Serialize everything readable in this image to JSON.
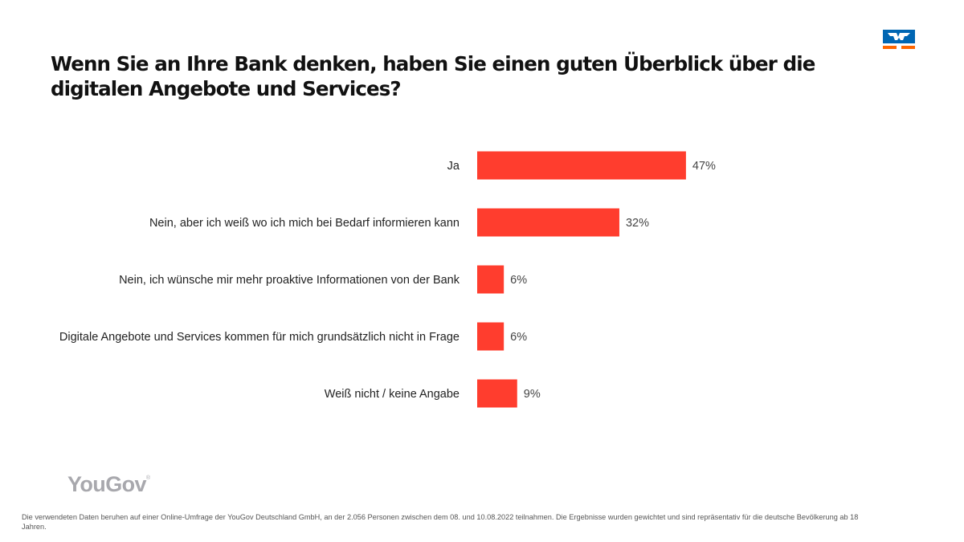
{
  "title": "Wenn Sie an Ihre Bank denken, haben Sie einen guten Überblick über die digitalen Angebote und Services?",
  "brand": {
    "logo_icon": "volksbank-raiffeisenbank-logo-icon",
    "logo_blue": "#0066b3",
    "logo_orange": "#ff6600",
    "source_logo_text": "YouGov",
    "source_logo_mark": "®"
  },
  "footnote": "Die verwendeten Daten beruhen auf einer Online-Umfrage der YouGov Deutschland GmbH,  an der 2.056 Personen zwischen dem 08. und 10.08.2022 teilnahmen.  Die Ergebnisse wurden gewichtet und sind repräsentativ für die deutsche Bevölkerung ab 18 Jahren.",
  "chart_data": {
    "type": "bar",
    "orientation": "horizontal",
    "title": "Wenn Sie an Ihre Bank denken, haben Sie einen guten Überblick über die digitalen Angebote und Services?",
    "categories": [
      "Ja",
      "Nein, aber ich weiß wo ich mich bei Bedarf informieren kann",
      "Nein, ich wünsche mir mehr proaktive Informationen von der Bank",
      "Digitale Angebote und Services kommen für mich grundsätzlich nicht in Frage",
      "Weiß nicht / keine Angabe"
    ],
    "values": [
      47,
      32,
      6,
      6,
      9
    ],
    "value_labels": [
      "47%",
      "32%",
      "6%",
      "6%",
      "9%"
    ],
    "unit": "%",
    "xlabel": "",
    "ylabel": "",
    "xlim": [
      0,
      100
    ],
    "grid": false,
    "legend": "none",
    "bar_color": "#ff3d2e"
  }
}
